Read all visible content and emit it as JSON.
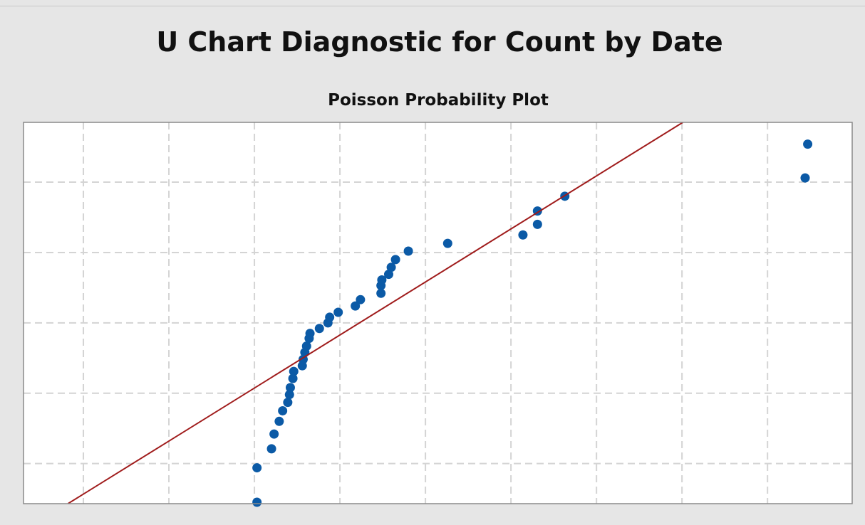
{
  "chart_data": {
    "type": "scatter",
    "title": "U Chart Diagnostic for Count by Date",
    "subtitle": "Poisson Probability Plot",
    "xlim": [
      -0.7,
      8.99
    ],
    "ylim": [
      -0.57,
      4.85
    ],
    "xticks": [
      0,
      1,
      2,
      3,
      4,
      5,
      6,
      7,
      8
    ],
    "yticks": [
      0,
      1,
      2,
      3,
      4
    ],
    "grid": true,
    "series": [
      {
        "type": "scatter",
        "color": "#0b5aa6",
        "x": [
          2.03,
          2.03,
          2.2,
          2.23,
          2.29,
          2.33,
          2.39,
          2.41,
          2.42,
          2.45,
          2.46,
          2.56,
          2.57,
          2.59,
          2.61,
          2.64,
          2.65,
          2.76,
          2.86,
          2.88,
          2.98,
          3.18,
          3.24,
          3.48,
          3.48,
          3.49,
          3.57,
          3.6,
          3.65,
          3.8,
          4.26,
          5.14,
          5.31,
          5.31,
          5.63,
          8.44,
          8.47
        ],
        "values": [
          -0.55,
          -0.06,
          0.21,
          0.42,
          0.6,
          0.75,
          0.87,
          0.98,
          1.08,
          1.21,
          1.31,
          1.39,
          1.48,
          1.58,
          1.67,
          1.78,
          1.85,
          1.92,
          2.0,
          2.08,
          2.15,
          2.24,
          2.33,
          2.42,
          2.53,
          2.61,
          2.69,
          2.79,
          2.9,
          3.02,
          3.13,
          3.25,
          3.4,
          3.59,
          3.8,
          4.06,
          4.54
        ]
      },
      {
        "type": "line",
        "color": "#a01c1c",
        "x": [
          -0.18,
          7.01
        ],
        "values": [
          -0.57,
          4.85
        ]
      }
    ]
  }
}
